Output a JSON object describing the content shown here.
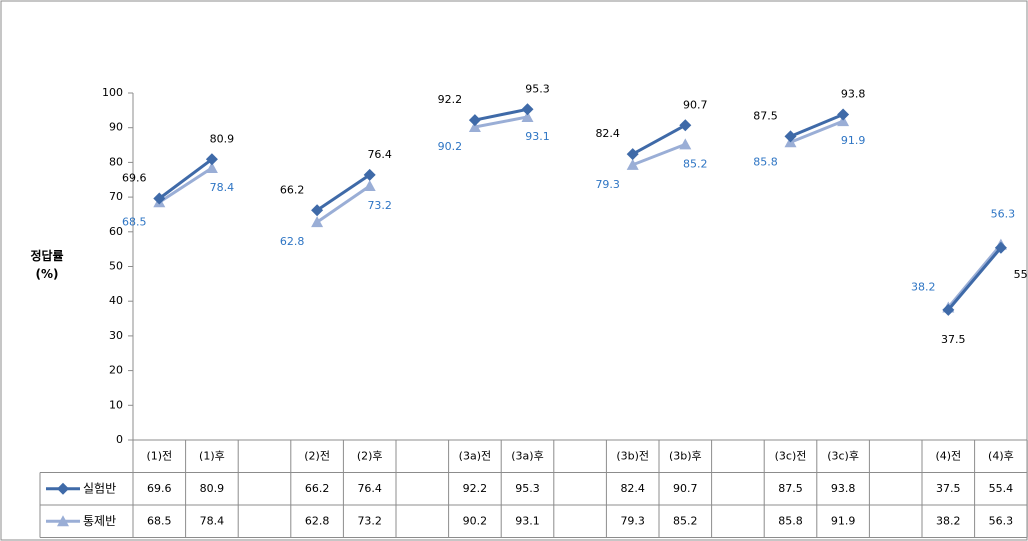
{
  "chart_data": {
    "type": "line",
    "ylabel": "정답률",
    "ylabel_unit": "(%)",
    "ylim": [
      0,
      100
    ],
    "yticks": [
      0,
      10,
      20,
      30,
      40,
      50,
      60,
      70,
      80,
      90,
      100
    ],
    "categories": [
      "(1)전",
      "(1)후",
      "",
      "(2)전",
      "(2)후",
      "",
      "(3a)전",
      "(3a)후",
      "",
      "(3b)전",
      "(3b)후",
      "",
      "(3c)전",
      "(3c)후",
      "",
      "(4)전",
      "(4)후"
    ],
    "series": [
      {
        "name": "실험반",
        "color": "#3f6aa8",
        "marker": "diamond",
        "label_color": "#000000",
        "values": [
          69.6,
          80.9,
          null,
          66.2,
          76.4,
          null,
          92.2,
          95.3,
          null,
          82.4,
          90.7,
          null,
          87.5,
          93.8,
          null,
          37.5,
          55.4
        ]
      },
      {
        "name": "통제반",
        "color": "#9aaed6",
        "marker": "triangle",
        "label_color": "#2e75c4",
        "values": [
          68.5,
          78.4,
          null,
          62.8,
          73.2,
          null,
          90.2,
          93.1,
          null,
          79.3,
          85.2,
          null,
          85.8,
          91.9,
          null,
          38.2,
          56.3
        ]
      }
    ],
    "data_table": true,
    "grid": false
  }
}
